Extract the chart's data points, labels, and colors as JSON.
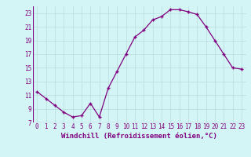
{
  "x": [
    0,
    1,
    2,
    3,
    4,
    5,
    6,
    7,
    8,
    9,
    10,
    11,
    12,
    13,
    14,
    15,
    16,
    17,
    18,
    19,
    20,
    21,
    22,
    23
  ],
  "y": [
    11.5,
    10.5,
    9.5,
    8.5,
    7.8,
    8.0,
    9.8,
    7.8,
    12.0,
    14.5,
    17.0,
    19.5,
    20.5,
    22.0,
    22.5,
    23.5,
    23.5,
    23.2,
    22.8,
    21.0,
    19.0,
    17.0,
    15.0,
    14.8
  ],
  "xlim": [
    -0.5,
    23.5
  ],
  "ylim": [
    7,
    24
  ],
  "yticks": [
    7,
    9,
    11,
    13,
    15,
    17,
    19,
    21,
    23
  ],
  "xticks": [
    0,
    1,
    2,
    3,
    4,
    5,
    6,
    7,
    8,
    9,
    10,
    11,
    12,
    13,
    14,
    15,
    16,
    17,
    18,
    19,
    20,
    21,
    22,
    23
  ],
  "xlabel": "Windchill (Refroidissement éolien,°C)",
  "line_color": "#800080",
  "marker": "+",
  "bg_color": "#d4f5f5",
  "grid_color": "#b8dede",
  "font_color": "#800080",
  "tick_fontsize": 5.5,
  "xlabel_fontsize": 6.5,
  "markersize": 3.5,
  "linewidth": 0.9
}
